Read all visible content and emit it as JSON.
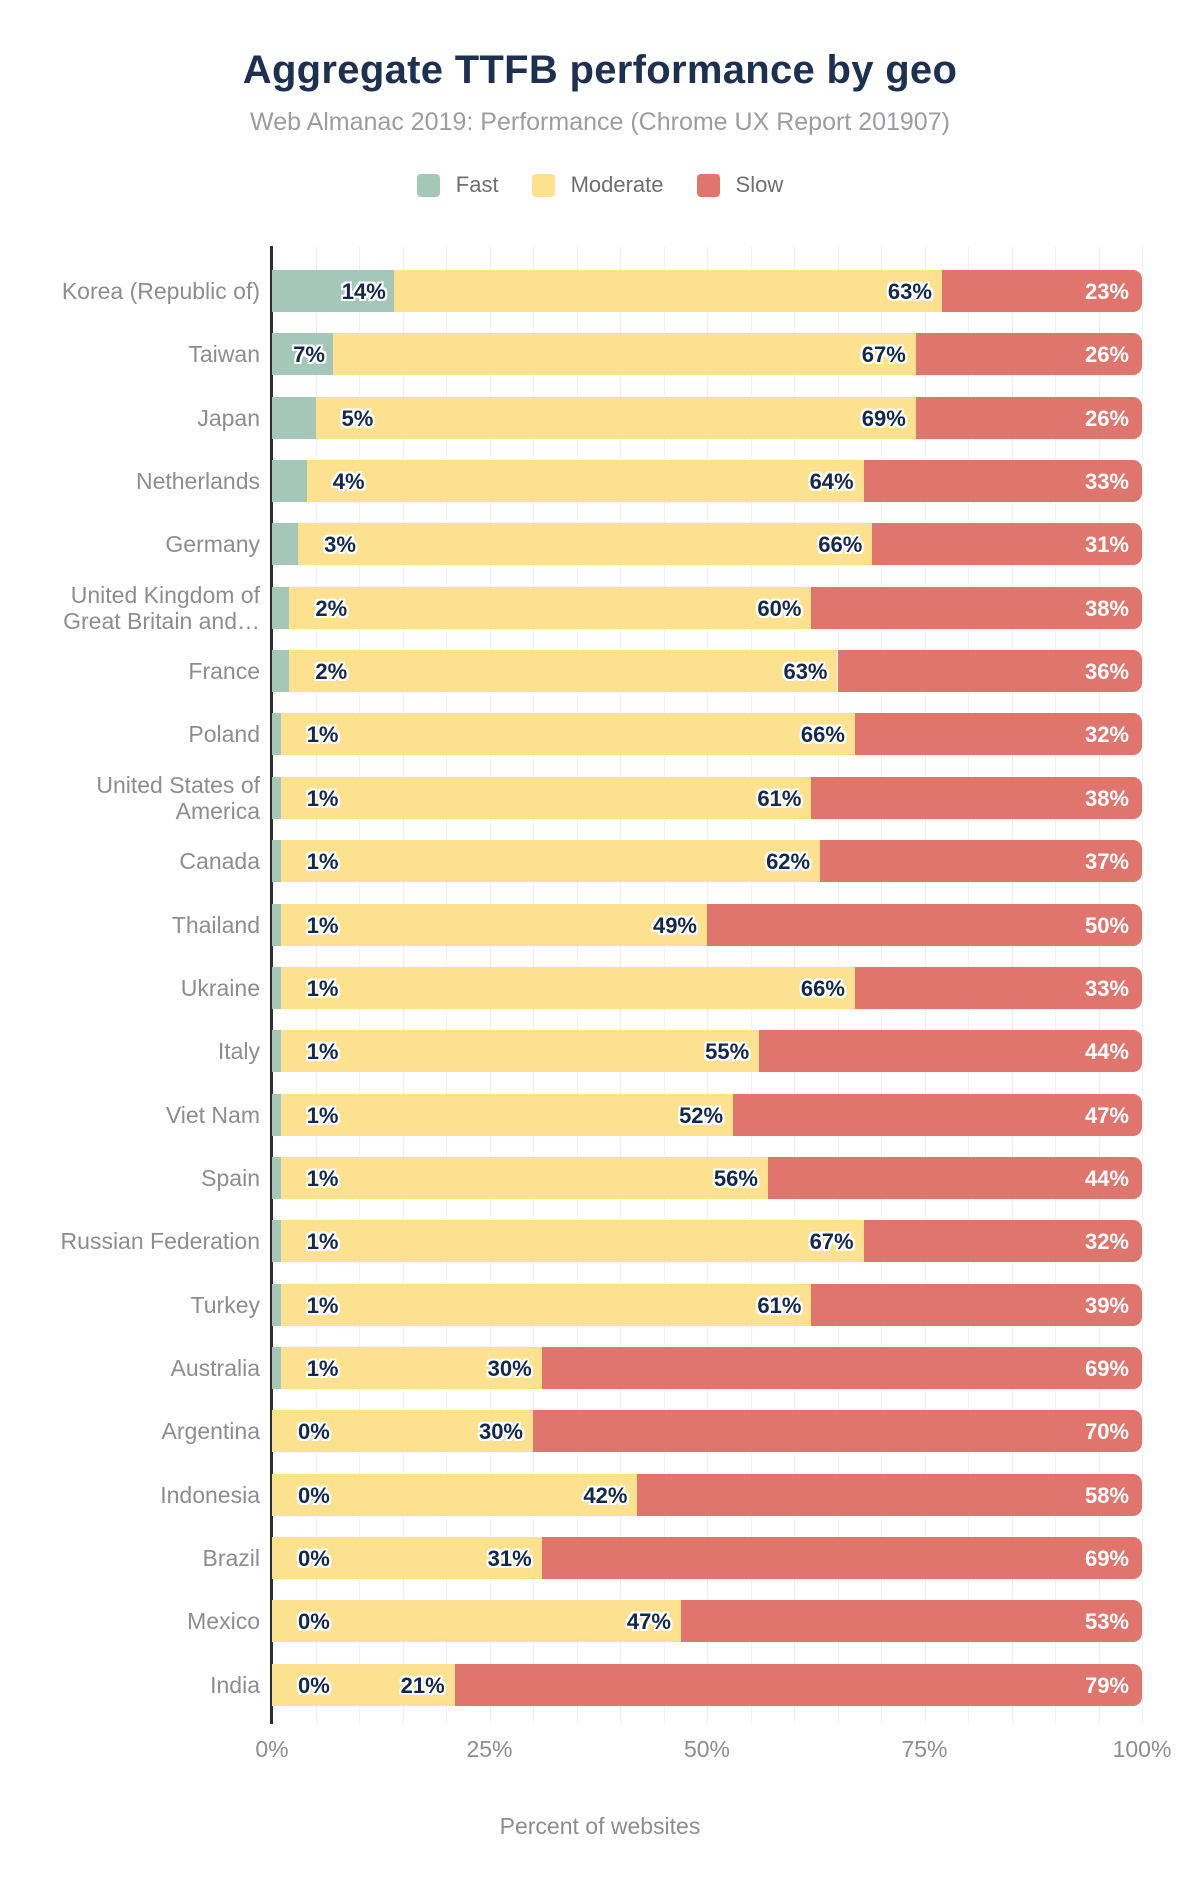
{
  "header": {
    "title": "Aggregate TTFB performance by geo",
    "subtitle": "Web Almanac 2019: Performance (Chrome UX Report 201907)"
  },
  "legend": {
    "position": "top",
    "items": [
      {
        "label": "Fast",
        "color": "#a5c7b7"
      },
      {
        "label": "Moderate",
        "color": "#fce18f"
      },
      {
        "label": "Slow",
        "color": "#e0756d"
      }
    ]
  },
  "x_axis": {
    "title": "Percent of websites",
    "ticks": [
      "0%",
      "25%",
      "50%",
      "75%",
      "100%"
    ],
    "tick_values": [
      0,
      25,
      50,
      75,
      100
    ],
    "gridline_step_percent": 5
  },
  "colors": {
    "fast": "#a5c7b7",
    "moderate": "#fce18f",
    "slow": "#e0756d",
    "bar_label": "#13294b",
    "slow_bar_label": "#ffffff",
    "title": "#1e3050",
    "subtitle": "#9c9ca1",
    "category_label": "#8d8d8d",
    "tick_label": "#8d8d8d",
    "legend_label": "#6e6e6e",
    "axis_line": "#2f2f2f",
    "gridline": "#f0f0f0"
  },
  "chart_data": {
    "type": "bar",
    "orientation": "horizontal",
    "stacked": true,
    "title": "Aggregate TTFB performance by geo",
    "subtitle": "Web Almanac 2019: Performance (Chrome UX Report 201907)",
    "xlabel": "Percent of websites",
    "xlim": [
      0,
      100
    ],
    "grid": true,
    "legend_position": "top",
    "value_suffix": "%",
    "categories": [
      "Korea (Republic of)",
      "Taiwan",
      "Japan",
      "Netherlands",
      "Germany",
      "United Kingdom of Great Britain and…",
      "France",
      "Poland",
      "United States of America",
      "Canada",
      "Thailand",
      "Ukraine",
      "Italy",
      "Viet Nam",
      "Spain",
      "Russian Federation",
      "Turkey",
      "Australia",
      "Argentina",
      "Indonesia",
      "Brazil",
      "Mexico",
      "India"
    ],
    "category_display_lines": {
      "5": [
        "United Kingdom of",
        "Great Britain and…"
      ],
      "8": [
        "United States of",
        "America"
      ]
    },
    "series": [
      {
        "name": "Fast",
        "values": [
          14,
          7,
          5,
          4,
          3,
          2,
          2,
          1,
          1,
          1,
          1,
          1,
          1,
          1,
          1,
          1,
          1,
          1,
          0,
          0,
          0,
          0,
          0
        ]
      },
      {
        "name": "Moderate",
        "values": [
          63,
          67,
          69,
          64,
          66,
          60,
          63,
          66,
          61,
          62,
          49,
          66,
          55,
          52,
          56,
          67,
          61,
          30,
          30,
          42,
          31,
          47,
          21
        ]
      },
      {
        "name": "Slow",
        "values": [
          23,
          26,
          26,
          33,
          31,
          38,
          36,
          32,
          38,
          37,
          50,
          33,
          44,
          47,
          44,
          32,
          39,
          69,
          70,
          58,
          69,
          53,
          79
        ]
      }
    ]
  }
}
